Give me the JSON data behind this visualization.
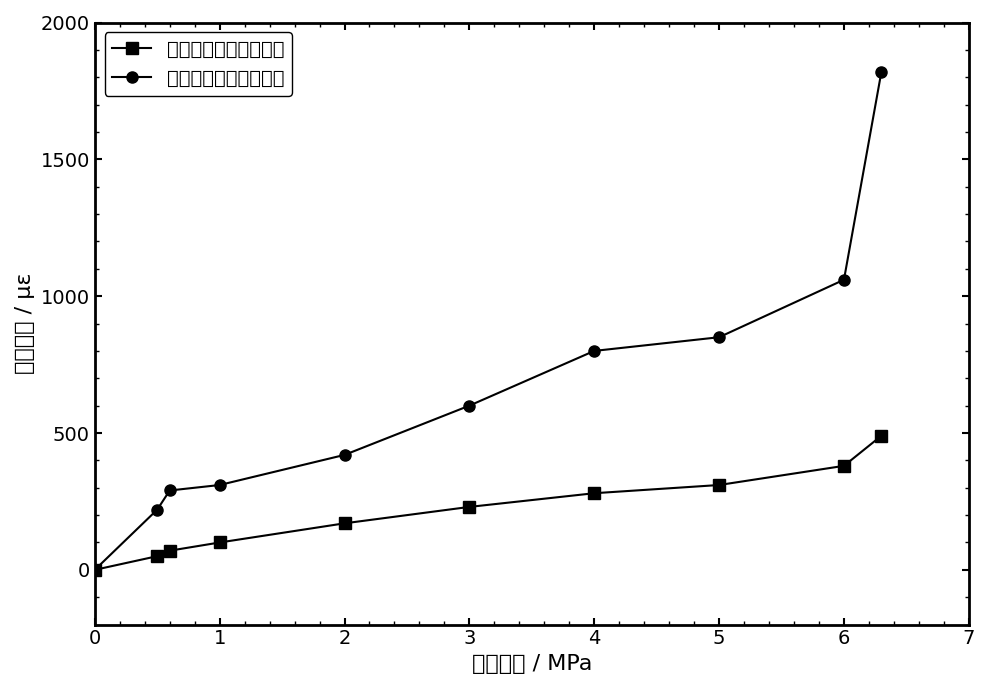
{
  "series1_label": "带弹性缓冲层的储氢罐",
  "series2_label": "无弹性缓冲层的储氢罐",
  "series1_x": [
    0,
    0.5,
    0.6,
    1.0,
    2.0,
    3.0,
    4.0,
    5.0,
    6.0,
    6.3
  ],
  "series1_y": [
    0,
    50,
    70,
    100,
    170,
    230,
    280,
    310,
    380,
    490
  ],
  "series2_x": [
    0,
    0.5,
    0.6,
    1.0,
    2.0,
    3.0,
    4.0,
    5.0,
    6.0,
    6.3
  ],
  "series2_y": [
    0,
    220,
    290,
    310,
    420,
    600,
    800,
    850,
    1060,
    1820
  ],
  "series1_color": "#000000",
  "series2_color": "#000000",
  "series1_marker": "s",
  "series2_marker": "o",
  "xlabel": "氢气压力 / MPa",
  "ylabel": "微观应变 / με",
  "xlim": [
    0,
    7
  ],
  "ylim": [
    -200,
    2000
  ],
  "xticks": [
    0,
    1,
    2,
    3,
    4,
    5,
    6,
    7
  ],
  "yticks": [
    0,
    500,
    1000,
    1500,
    2000
  ],
  "title_fontsize": 16,
  "label_fontsize": 16,
  "tick_fontsize": 14,
  "legend_fontsize": 14,
  "linewidth": 1.5,
  "markersize": 8,
  "bg_color": "#ffffff"
}
